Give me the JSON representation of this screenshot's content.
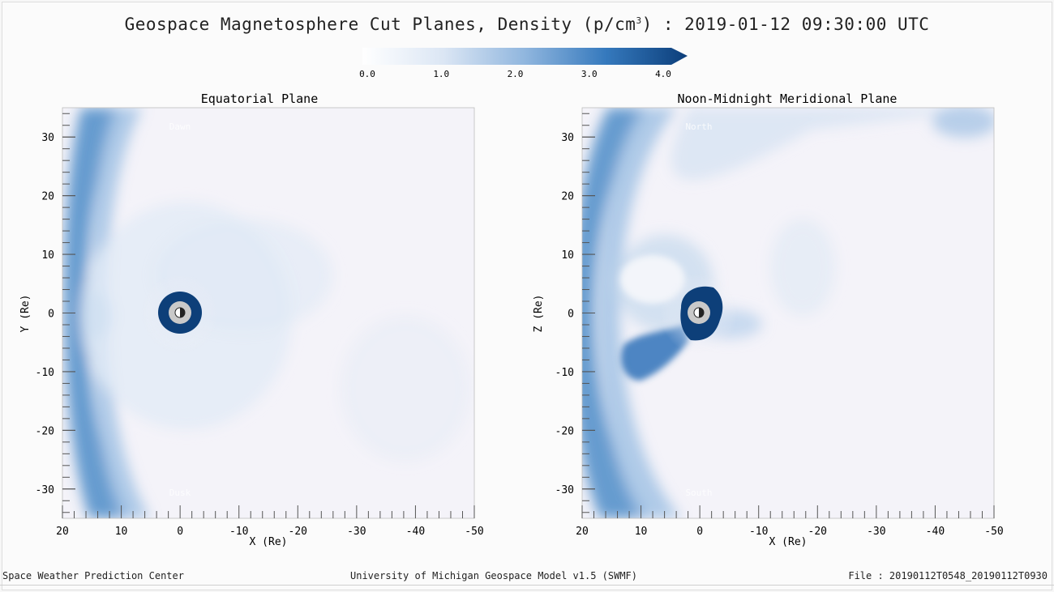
{
  "title": {
    "prefix": "Geospace Magnetosphere Cut Planes, Density (p/cm",
    "superscript": "3",
    "suffix": ") : 2019-01-12 09:30:00 UTC"
  },
  "colorbar": {
    "ticks": [
      "0.0",
      "1.0",
      "2.0",
      "3.0",
      "4.0"
    ],
    "tick_values": [
      0,
      1,
      2,
      3,
      4
    ],
    "colors": [
      "#ffffff",
      "#dbe6f4",
      "#90b6de",
      "#3579bd",
      "#0c3e7a"
    ]
  },
  "chart_data": [
    {
      "type": "heatmap",
      "title": "Equatorial Plane",
      "xlabel": "X (Re)",
      "ylabel": "Y (Re)",
      "xlim": [
        20,
        -50
      ],
      "ylim": [
        -35,
        35
      ],
      "x_ticks": [
        "20",
        "10",
        "0",
        "-10",
        "-20",
        "-30",
        "-40",
        "-50"
      ],
      "y_ticks": [
        "30",
        "20",
        "10",
        "0",
        "-10",
        "-20",
        "-30"
      ],
      "x_tick_values": [
        20,
        10,
        0,
        -10,
        -20,
        -30,
        -40,
        -50
      ],
      "y_tick_values": [
        30,
        20,
        10,
        0,
        -10,
        -20,
        -30
      ],
      "top_annotation": "Dawn",
      "bottom_annotation": "Dusk"
    },
    {
      "type": "heatmap",
      "title": "Noon-Midnight Meridional Plane",
      "xlabel": "X (Re)",
      "ylabel": "Z (Re)",
      "xlim": [
        20,
        -50
      ],
      "ylim": [
        -35,
        35
      ],
      "x_ticks": [
        "20",
        "10",
        "0",
        "-10",
        "-20",
        "-30",
        "-40",
        "-50"
      ],
      "y_ticks": [
        "30",
        "20",
        "10",
        "0",
        "-10",
        "-20",
        "-30"
      ],
      "x_tick_values": [
        20,
        10,
        0,
        -10,
        -20,
        -30,
        -40,
        -50
      ],
      "y_tick_values": [
        30,
        20,
        10,
        0,
        -10,
        -20,
        -30
      ],
      "top_annotation": "North",
      "bottom_annotation": "South"
    }
  ],
  "footer": {
    "left": "Space Weather Prediction Center",
    "center": "University of Michigan Geospace Model v1.5 (SWMF)",
    "right": "File : 20190112T0548_20190112T0930"
  }
}
